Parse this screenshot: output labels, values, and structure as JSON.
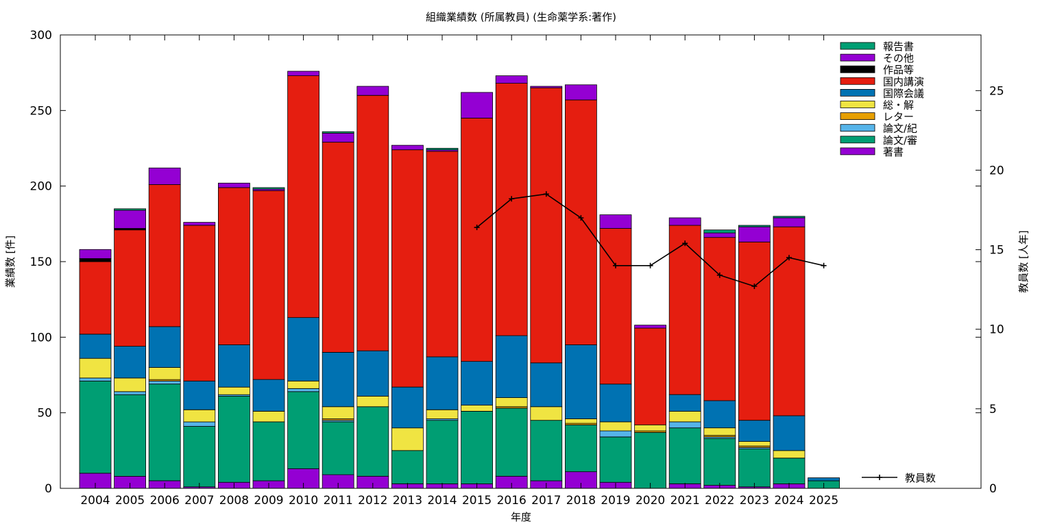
{
  "chart_data": {
    "type": "bar",
    "stacked": true,
    "title": "組織業績数 (所属教員) (生命薬学系:著作)",
    "xlabel": "年度",
    "ylabel": "業績数 [件]",
    "y2label": "教員数 [人年]",
    "ylim": [
      0,
      300
    ],
    "y2lim": [
      0,
      28.5
    ],
    "yticks": [
      0,
      50,
      100,
      150,
      200,
      250,
      300
    ],
    "y2ticks": [
      0,
      5,
      10,
      15,
      20,
      25
    ],
    "categories": [
      "2004",
      "2005",
      "2006",
      "2007",
      "2008",
      "2009",
      "2010",
      "2011",
      "2012",
      "2013",
      "2014",
      "2015",
      "2016",
      "2017",
      "2018",
      "2019",
      "2020",
      "2021",
      "2022",
      "2023",
      "2024",
      "2025"
    ],
    "series": [
      {
        "name": "著書",
        "color": "#9400d3",
        "values": [
          10,
          8,
          5,
          1,
          4,
          5,
          13,
          9,
          8,
          3,
          3,
          3,
          8,
          5,
          11,
          4,
          0,
          3,
          2,
          1,
          3,
          0
        ]
      },
      {
        "name": "論文/審",
        "color": "#009e73",
        "values": [
          61,
          54,
          64,
          40,
          57,
          39,
          51,
          35,
          46,
          22,
          42,
          48,
          45,
          40,
          31,
          30,
          37,
          37,
          31,
          25,
          17,
          5
        ]
      },
      {
        "name": "論文/紀",
        "color": "#56b4e9",
        "values": [
          2,
          2,
          2,
          3,
          1,
          0,
          2,
          1,
          0,
          0,
          1,
          0,
          0,
          0,
          0,
          4,
          0,
          4,
          1,
          1,
          0,
          0
        ]
      },
      {
        "name": "レター",
        "color": "#e69f00",
        "values": [
          0,
          0,
          1,
          0,
          0,
          0,
          0,
          1,
          0,
          0,
          0,
          0,
          1,
          0,
          1,
          0,
          1,
          0,
          1,
          1,
          0,
          0
        ]
      },
      {
        "name": "総・解",
        "color": "#f0e442",
        "values": [
          13,
          9,
          8,
          8,
          5,
          7,
          5,
          8,
          7,
          15,
          6,
          4,
          6,
          9,
          3,
          6,
          4,
          7,
          5,
          3,
          5,
          0
        ]
      },
      {
        "name": "国際会議",
        "color": "#0072b2",
        "values": [
          16,
          21,
          27,
          19,
          28,
          21,
          42,
          36,
          30,
          27,
          35,
          29,
          41,
          29,
          49,
          25,
          0,
          11,
          18,
          14,
          23,
          2
        ]
      },
      {
        "name": "国内講演",
        "color": "#e51e10",
        "values": [
          48,
          77,
          94,
          103,
          104,
          125,
          160,
          139,
          169,
          157,
          136,
          161,
          167,
          182,
          162,
          103,
          64,
          112,
          108,
          118,
          125,
          0
        ]
      },
      {
        "name": "作品等",
        "color": "#000000",
        "values": [
          2,
          1,
          0,
          0,
          0,
          0,
          0,
          0,
          0,
          0,
          0,
          0,
          0,
          0,
          0,
          0,
          0,
          0,
          0,
          0,
          0,
          0
        ]
      },
      {
        "name": "その他",
        "color": "#9400d3",
        "values": [
          6,
          12,
          11,
          2,
          3,
          1,
          3,
          6,
          6,
          3,
          1,
          17,
          5,
          1,
          10,
          9,
          2,
          5,
          3,
          10,
          6,
          0
        ]
      },
      {
        "name": "報告書",
        "color": "#009e73",
        "values": [
          0,
          1,
          0,
          0,
          0,
          1,
          0,
          1,
          0,
          0,
          1,
          0,
          0,
          0,
          0,
          0,
          0,
          0,
          2,
          1,
          1,
          0
        ]
      }
    ],
    "line_series": {
      "name": "教員数",
      "color": "#000000",
      "axis": "y2",
      "values": [
        null,
        null,
        null,
        null,
        null,
        null,
        null,
        null,
        null,
        null,
        null,
        16.4,
        18.2,
        18.5,
        17.0,
        14.0,
        14.0,
        15.4,
        13.4,
        12.7,
        14.5,
        14.0
      ]
    },
    "grid": false,
    "legend_position": "top-right"
  }
}
